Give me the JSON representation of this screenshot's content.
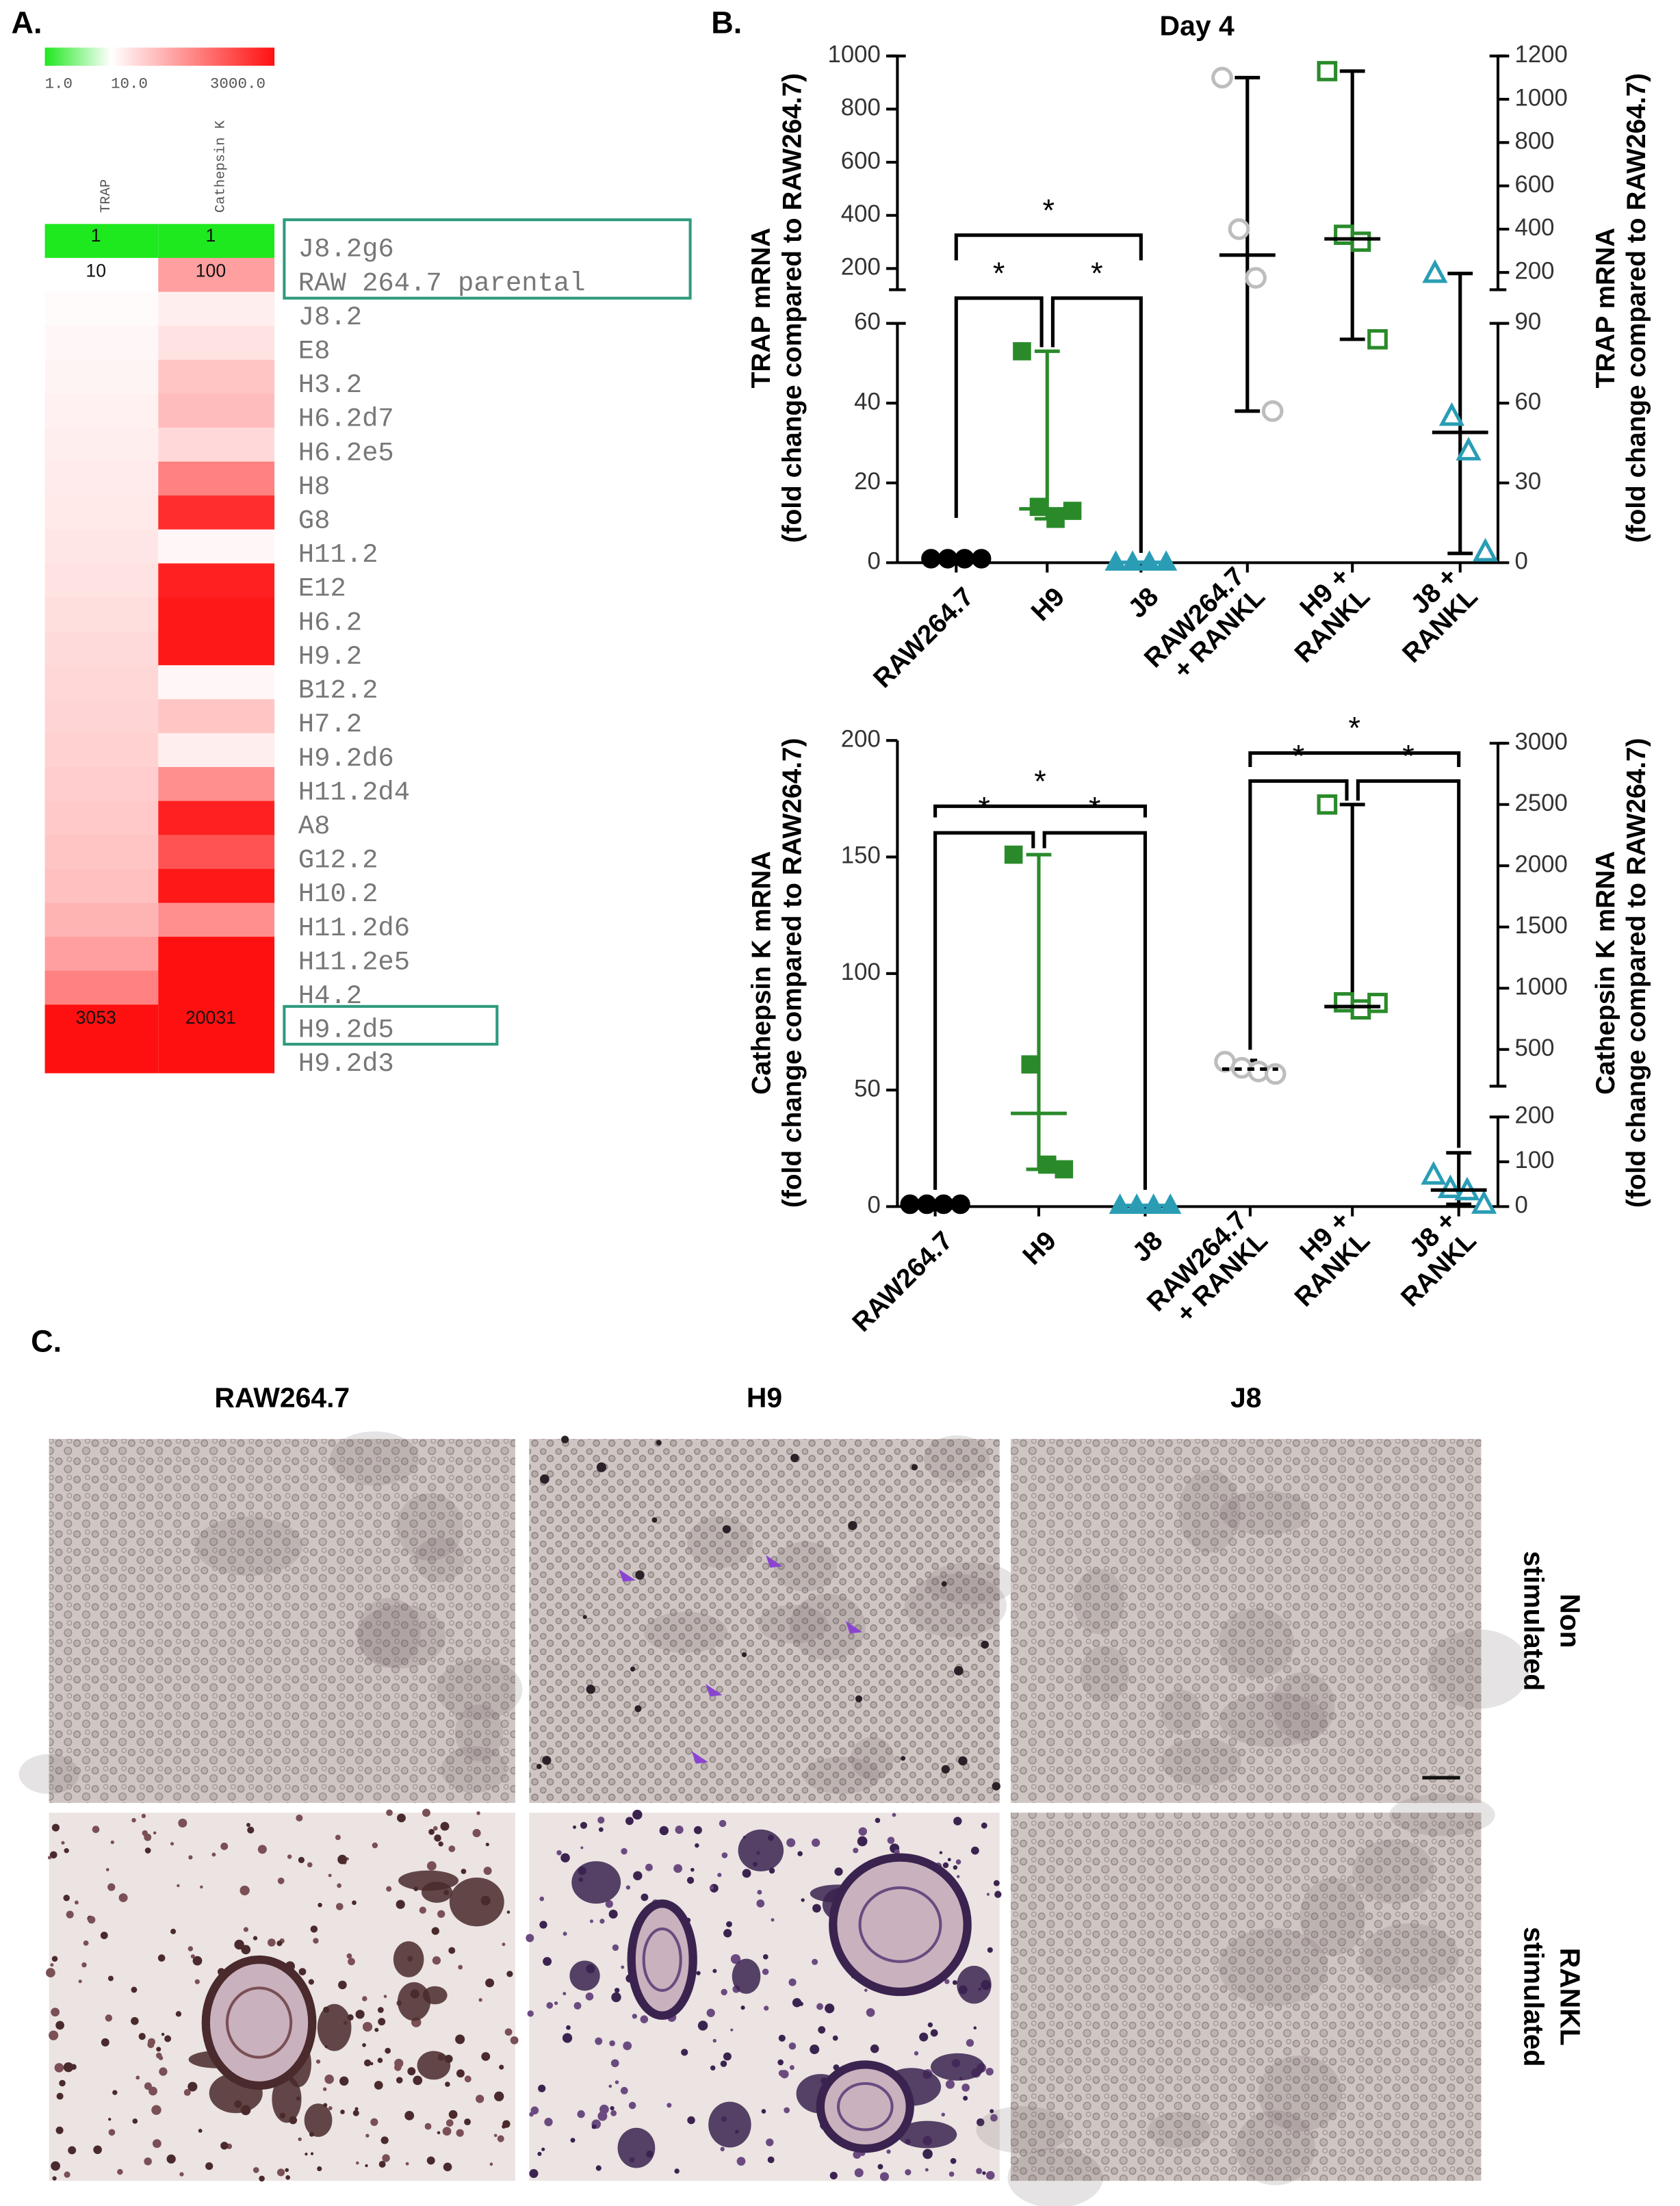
{
  "panel_labels": [
    "A.",
    "B.",
    "C."
  ],
  "heatmap": {
    "scale_labels": [
      "1.0",
      "10.0",
      "3000.0"
    ],
    "scale_values": [
      1,
      10,
      3000
    ],
    "scale_colors": [
      "#1ee81e",
      "#ffffff",
      "#ff1010"
    ],
    "columns": [
      "TRAP",
      "Cathepsin K"
    ],
    "rows": [
      {
        "label": "J8.2g6",
        "values": [
          1,
          1
        ],
        "value_labels": [
          "1",
          "1"
        ]
      },
      {
        "label": "RAW 264.7 parental",
        "values": [
          10,
          100
        ],
        "value_labels": [
          "10",
          "100"
        ]
      },
      {
        "label": "J8.2",
        "values": [
          11,
          15
        ]
      },
      {
        "label": "E8",
        "values": [
          12,
          20
        ]
      },
      {
        "label": "H3.2",
        "values": [
          13,
          40
        ]
      },
      {
        "label": "H6.2d7",
        "values": [
          14,
          50
        ]
      },
      {
        "label": "H6.2e5",
        "values": [
          15,
          25
        ]
      },
      {
        "label": "H8",
        "values": [
          16,
          200
        ]
      },
      {
        "label": "G8",
        "values": [
          17,
          1500
        ]
      },
      {
        "label": "H11.2",
        "values": [
          18,
          12
        ]
      },
      {
        "label": "E12",
        "values": [
          20,
          2000
        ]
      },
      {
        "label": "H6.2",
        "values": [
          22,
          2500
        ]
      },
      {
        "label": "H9.2",
        "values": [
          24,
          2500
        ]
      },
      {
        "label": "B12.2",
        "values": [
          26,
          12
        ]
      },
      {
        "label": "H7.2",
        "values": [
          28,
          40
        ]
      },
      {
        "label": "H9.2d6",
        "values": [
          30,
          15
        ]
      },
      {
        "label": "H11.2d4",
        "values": [
          33,
          150
        ]
      },
      {
        "label": "A8",
        "values": [
          36,
          2000
        ]
      },
      {
        "label": "G12.2",
        "values": [
          40,
          600
        ]
      },
      {
        "label": "H10.2",
        "values": [
          45,
          2500
        ]
      },
      {
        "label": "H11.2d6",
        "values": [
          60,
          150
        ]
      },
      {
        "label": "H11.2e5",
        "values": [
          100,
          3000
        ]
      },
      {
        "label": "H4.2",
        "values": [
          200,
          3000
        ]
      },
      {
        "label": "H9.2d5",
        "values": [
          3053,
          20031
        ],
        "value_labels": [
          "3053",
          "20031"
        ]
      },
      {
        "label": "H9.2d3",
        "values": [
          3000,
          3000
        ]
      }
    ]
  },
  "chart_data": [
    {
      "type": "dot",
      "title": "Day 4",
      "categories": [
        [
          "RAW264.7"
        ],
        [
          "H9"
        ],
        [
          "J8"
        ],
        [
          "RAW264.7",
          "+ RANKL"
        ],
        [
          "H9 +",
          "RANKL"
        ],
        [
          "J8 +",
          "RANKL"
        ]
      ],
      "ylabel": [
        "TRAP mRNA",
        "(fold change compared to RAW264.7)"
      ],
      "y2label": [
        "TRAP mRNA",
        "(fold change compared to RAW264.7)"
      ],
      "ylim": [
        0,
        1000
      ],
      "ybreak": [
        60,
        120
      ],
      "yticks": [
        0,
        20,
        40,
        60,
        200,
        400,
        600,
        800,
        1000
      ],
      "y2lim": [
        0,
        1200
      ],
      "y2break": [
        90,
        120
      ],
      "y2ticks": [
        0,
        30,
        60,
        90,
        200,
        400,
        600,
        800,
        1000,
        1200
      ],
      "axes": [
        "y",
        "y",
        "y",
        "y2",
        "y2",
        "y2"
      ],
      "markers": [
        "circle",
        "square",
        "triangle",
        "circle",
        "square",
        "triangle"
      ],
      "filled": [
        true,
        true,
        true,
        false,
        false,
        false
      ],
      "colors": [
        "#000000",
        "#2a8a2a",
        "#2a9db5",
        "#bdbdbd",
        "#2a8a2a",
        "#2a9db5"
      ],
      "values": [
        [
          1,
          1,
          1,
          1
        ],
        [
          53,
          14,
          11,
          13
        ],
        [
          0.1,
          0.1,
          0.1,
          0.1
        ],
        [
          1100,
          400,
          175,
          57
        ],
        [
          1130,
          374,
          342,
          84
        ],
        [
          195,
          55,
          42,
          4
        ]
      ],
      "medians": [
        1,
        13.5,
        0.1,
        280,
        355,
        49
      ],
      "whiskers": [
        [
          1,
          1
        ],
        [
          11,
          53
        ],
        [
          0.1,
          0.1
        ],
        [
          57,
          1100
        ],
        [
          84,
          1130
        ],
        [
          3.5,
          195
        ]
      ],
      "whisker_colors": [
        "#000000",
        "#2a8a2a",
        "#2a9db5",
        "#000000",
        "#000000",
        "#000000"
      ],
      "whisker_dashed": [
        false,
        false,
        false,
        false,
        false,
        false
      ],
      "significance": [
        {
          "pair": [
            0,
            2
          ],
          "label": "*"
        },
        {
          "pair": [
            0,
            1
          ],
          "label": "*"
        },
        {
          "pair": [
            1,
            2
          ],
          "label": "*"
        }
      ]
    },
    {
      "type": "dot",
      "categories": [
        [
          "RAW264.7"
        ],
        [
          "H9"
        ],
        [
          "J8"
        ],
        [
          "RAW264.7",
          "+ RANKL"
        ],
        [
          "H9 +",
          "RANKL"
        ],
        [
          "J8 +",
          "RANKL"
        ]
      ],
      "ylabel": [
        "Cathepsin K mRNA",
        "(fold change compared to RAW264.7)"
      ],
      "y2label": [
        "Cathepsin K mRNA",
        "(fold change compared to RAW264.7)"
      ],
      "ylim": [
        0,
        200
      ],
      "yticks": [
        0,
        50,
        100,
        150,
        200
      ],
      "y2lim": [
        0,
        3000
      ],
      "y2break": [
        200,
        200
      ],
      "y2ticks": [
        0,
        100,
        200,
        500,
        1000,
        1500,
        2000,
        2500,
        3000
      ],
      "axes": [
        "y",
        "y",
        "y",
        "y2",
        "y2",
        "y2"
      ],
      "markers": [
        "circle",
        "square",
        "triangle",
        "circle",
        "square",
        "triangle"
      ],
      "filled": [
        true,
        true,
        true,
        false,
        false,
        false
      ],
      "colors": [
        "#000000",
        "#2a8a2a",
        "#2a9db5",
        "#bdbdbd",
        "#2a8a2a",
        "#2a9db5"
      ],
      "values": [
        [
          1,
          1,
          1,
          1
        ],
        [
          151,
          61,
          18,
          16
        ],
        [
          0.5,
          0.5,
          0.5,
          0.5
        ],
        [
          400,
          350,
          320,
          300
        ],
        [
          2500,
          885,
          827,
          880
        ],
        [
          70,
          40,
          35,
          5
        ]
      ],
      "medians": [
        1,
        40,
        0.5,
        340,
        850,
        37
      ],
      "whiskers": [
        [
          1,
          1
        ],
        [
          16,
          151
        ],
        [
          0.5,
          0.5
        ],
        [
          290,
          410
        ],
        [
          827,
          2500
        ],
        [
          5,
          120
        ]
      ],
      "whisker_colors": [
        "#000000",
        "#2a8a2a",
        "#2a9db5",
        "#000000",
        "#000000",
        "#000000"
      ],
      "whisker_dashed": [
        false,
        false,
        false,
        true,
        false,
        false
      ],
      "significance": [
        {
          "pair": [
            0,
            2
          ],
          "label": "*"
        },
        {
          "pair": [
            0,
            1
          ],
          "label": "*"
        },
        {
          "pair": [
            1,
            2
          ],
          "label": "*"
        },
        {
          "pair": [
            3,
            5
          ],
          "label": "*"
        },
        {
          "pair": [
            3,
            4
          ],
          "label": "*"
        },
        {
          "pair": [
            4,
            5
          ],
          "label": "*"
        }
      ]
    }
  ],
  "images": {
    "columns": [
      "RAW264.7",
      "H9",
      "J8"
    ],
    "rows": [
      [
        "Non",
        "stimulated"
      ],
      [
        "RANKL",
        "stimulated"
      ]
    ]
  }
}
